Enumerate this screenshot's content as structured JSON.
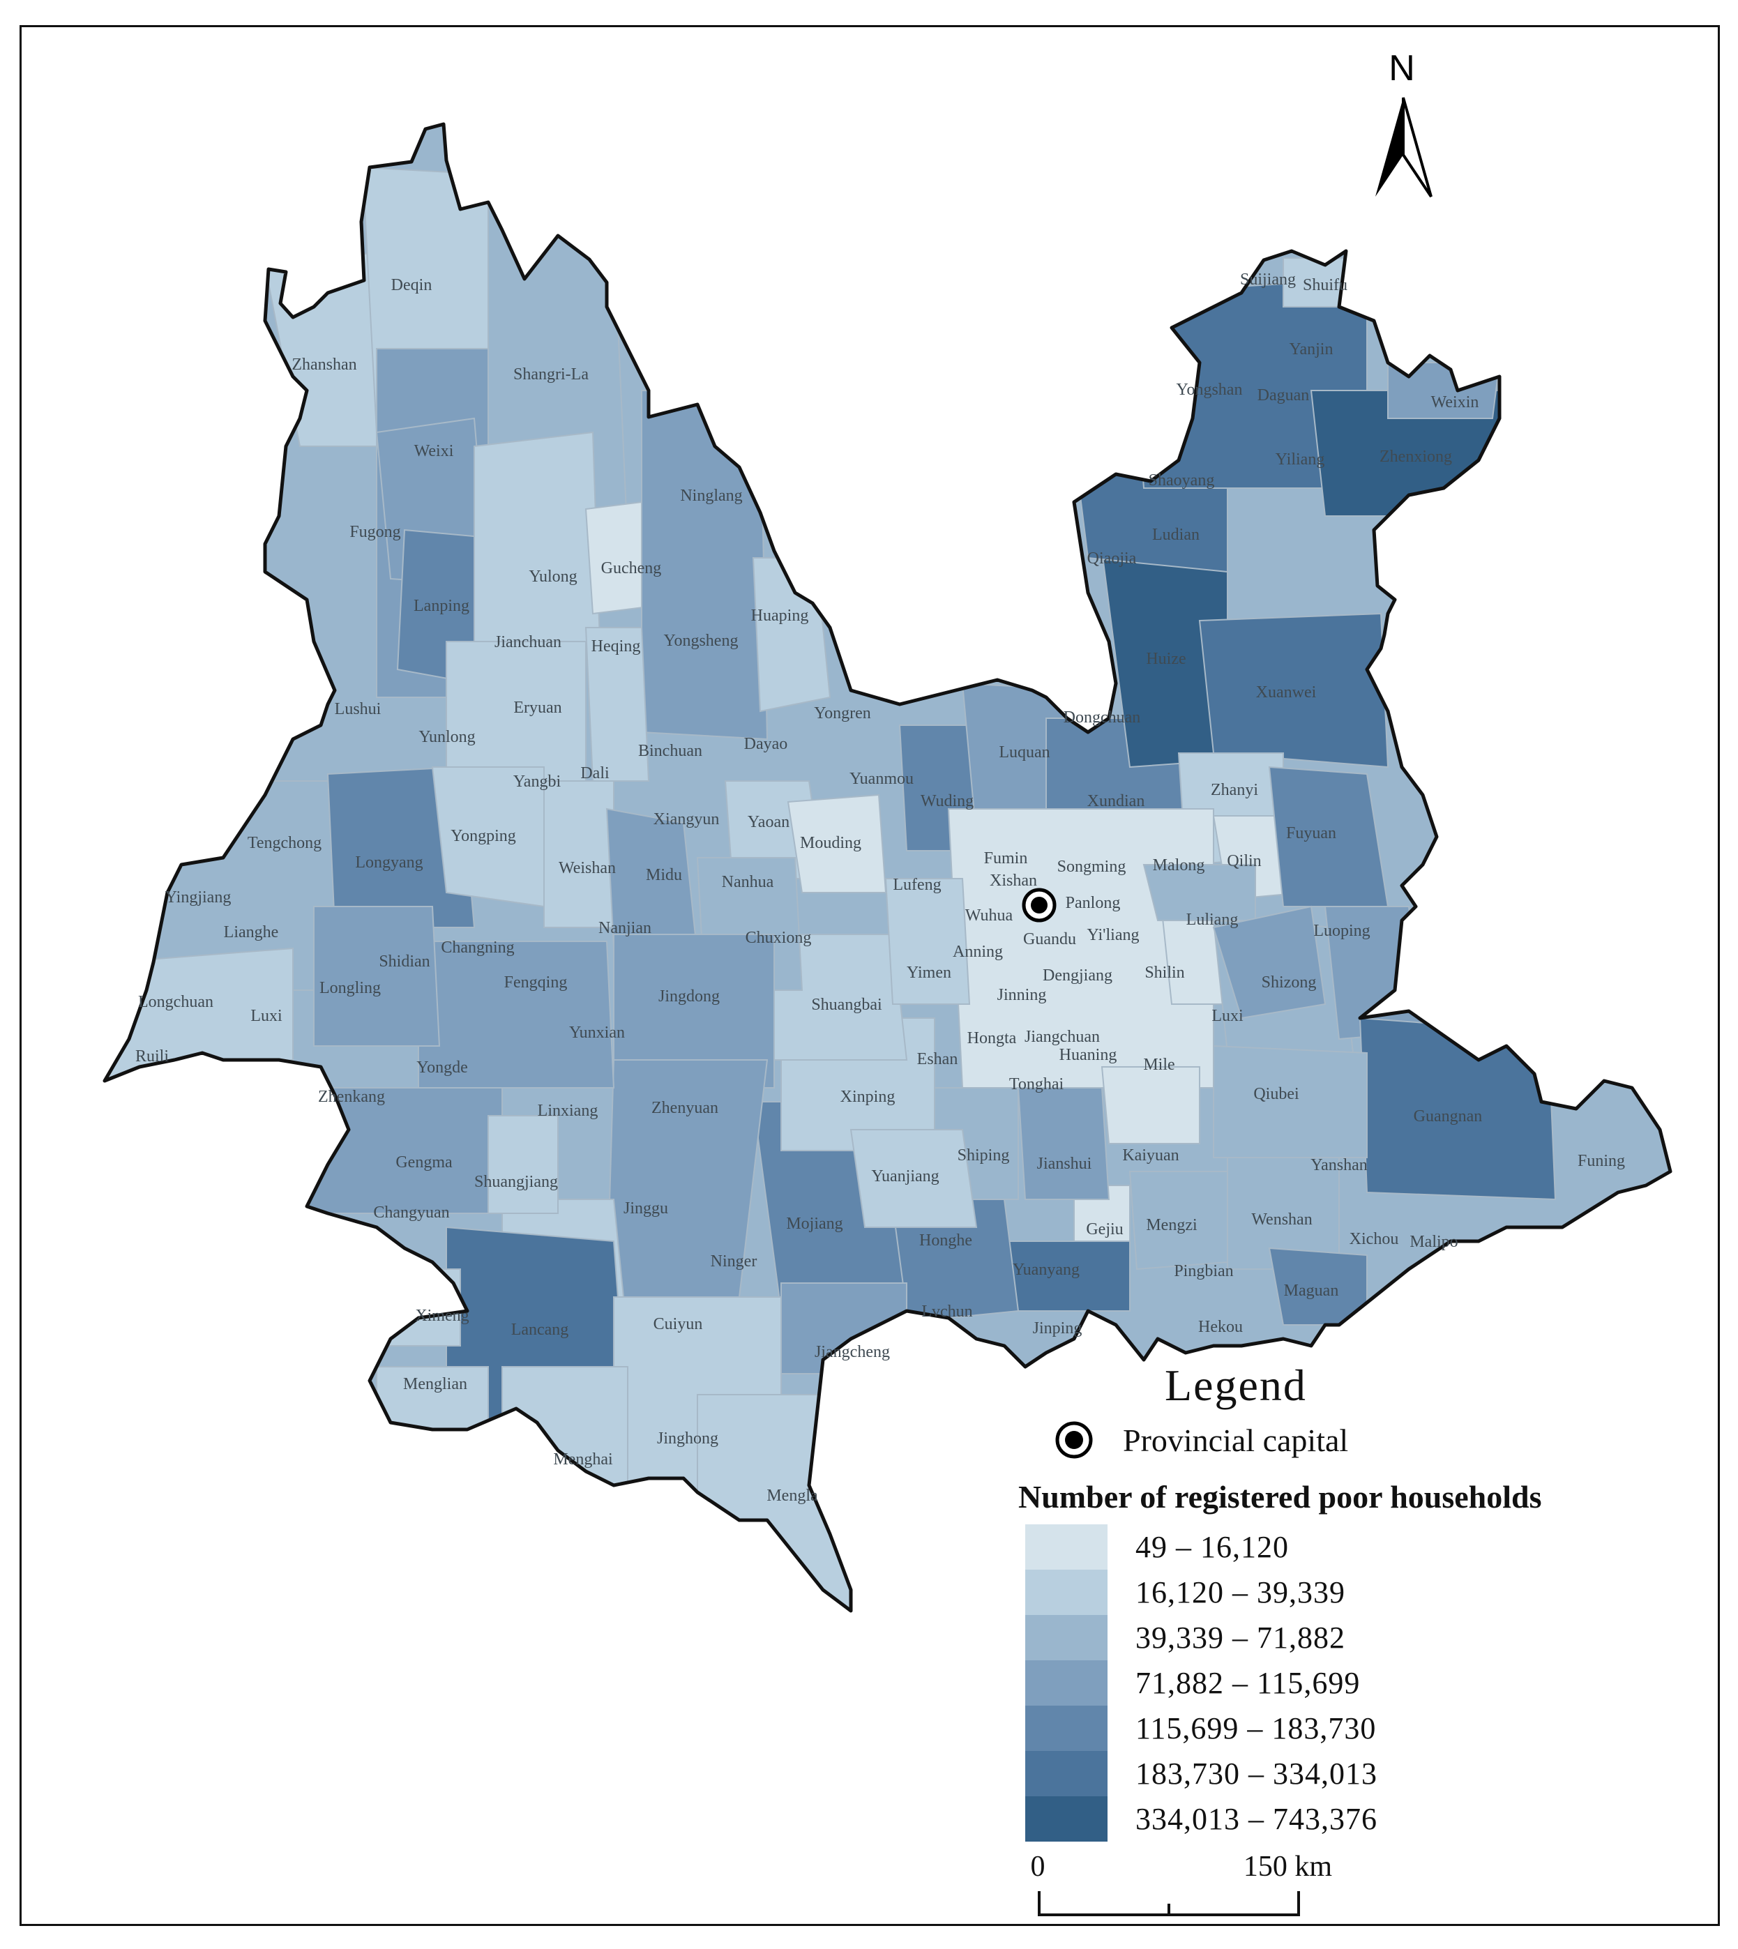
{
  "map": {
    "north_label": "N",
    "labels": {
      "deqin": "Deqin",
      "zhanshan": "Zhanshan",
      "shangrila": "Shangri-La",
      "weixi": "Weixi",
      "fugong": "Fugong",
      "lanping": "Lanping",
      "yulong": "Yulong",
      "gucheng": "Gucheng",
      "ninglang": "Ninglang",
      "huaping": "Huaping",
      "jianchuan": "Jianchuan",
      "heqing": "Heqing",
      "yongsheng": "Yongsheng",
      "lushui": "Lushui",
      "eryuan": "Eryuan",
      "yunlong": "Yunlong",
      "binchuan": "Binchuan",
      "dayao": "Dayao",
      "yongren": "Yongren",
      "yangbi": "Yangbi",
      "dali": "Dali",
      "yuanmou": "Yuanmou",
      "tengchong": "Tengchong",
      "yongping": "Yongping",
      "longyang": "Longyang",
      "xiangyun": "Xiangyun",
      "yaoan": "Yaoan",
      "mouding": "Mouding",
      "wuding": "Wuding",
      "luquan": "Luquan",
      "dongchuan": "Dongchuan",
      "xundian": "Xundian",
      "yingjiang": "Yingjiang",
      "weishan": "Weishan",
      "midu": "Midu",
      "nanhua": "Nanhua",
      "lufeng": "Lufeng",
      "fumin": "Fumin",
      "songming": "Songming",
      "malong": "Malong",
      "lianghe": "Lianghe",
      "nanjian": "Nanjian",
      "chuxiong": "Chuxiong",
      "xishan": "Xishan",
      "panlong": "Panlong",
      "wuhua": "Wuhua",
      "guandu": "Guandu",
      "yiliang": "Yi'liang",
      "anning": "Anning",
      "changning": "Changning",
      "shidian": "Shidian",
      "longling": "Longling",
      "fengqing": "Fengqing",
      "yimen": "Yimen",
      "dengjiang": "Dengjiang",
      "shilin": "Shilin",
      "longchuan": "Longchuan",
      "luxi_w": "Luxi",
      "jingdong": "Jingdong",
      "shuangbai": "Shuangbai",
      "jinning": "Jinning",
      "ruili": "Ruili",
      "yunxian": "Yunxian",
      "hongta": "Hongta",
      "jiangchuan": "Jiangchuan",
      "eshan": "Eshan",
      "huaning": "Huaning",
      "yongde": "Yongde",
      "zhenkang": "Zhenkang",
      "tonghai": "Tonghai",
      "xinping": "Xinping",
      "zhenyuan": "Zhenyuan",
      "linxiang": "Linxiang",
      "shiping": "Shiping",
      "jianshui": "Jianshui",
      "gengma": "Gengma",
      "shuangjiang": "Shuangjiang",
      "yuanjiang": "Yuanjiang",
      "changyuan": "Changyuan",
      "jinggu": "Jinggu",
      "mojiang": "Mojiang",
      "honghe": "Honghe",
      "ninger": "Ninger",
      "ximeng": "Ximeng",
      "lancang": "Lancang",
      "cuiyun": "Cuiyun",
      "yuanyang": "Yuanyang",
      "lvchun": "Lvchun",
      "jinping": "Jinping",
      "jiangcheng": "Jiangcheng",
      "menglian": "Menglian",
      "jinghong": "Jinghong",
      "menghai": "Menghai",
      "mengla": "Mengla",
      "shuijiang": "Suijiang",
      "shuifu": "Shuifu",
      "yanjin": "Yanjin",
      "yongshan": "Yongshan",
      "daguan": "Daguan",
      "weixin": "Weixin",
      "zhenxiong": "Zhenxiong",
      "shaoyang": "Shaoyang",
      "yiliang_n": "Yiliang",
      "ludian": "Ludian",
      "qiaojia": "Qiaojia",
      "huize": "Huize",
      "xuanwei": "Xuanwei",
      "zhanyi": "Zhanyi",
      "qilin": "Qilin",
      "fuyuan": "Fuyuan",
      "luliang": "Luliang",
      "luoping": "Luoping",
      "shizong": "Shizong",
      "luxi_e": "Luxi",
      "mile": "Mile",
      "qiubei": "Qiubei",
      "guangnan": "Guangnan",
      "funing": "Funing",
      "kaiyuan": "Kaiyuan",
      "yanshan": "Yanshan",
      "gejiu": "Gejiu",
      "mengzi": "Mengzi",
      "wenshan": "Wenshan",
      "xichou": "Xichou",
      "malipo": "Malipo",
      "pingbian": "Pingbian",
      "maguan": "Maguan",
      "hekou": "Hekou"
    }
  },
  "legend": {
    "title": "Legend",
    "capital_label": "Provincial capital",
    "classes_title": "Number of registered poor households",
    "classes": [
      {
        "label": "49 – 16,120",
        "color": "#d5e3eb"
      },
      {
        "label": "16,120 – 39,339",
        "color": "#b8cfdf"
      },
      {
        "label": "39,339 – 71,882",
        "color": "#9ab6cd"
      },
      {
        "label": "71,882 – 115,699",
        "color": "#7f9fbe"
      },
      {
        "label": "115,699 – 183,730",
        "color": "#6186ab"
      },
      {
        "label": "183,730 – 334,013",
        "color": "#4b749c"
      },
      {
        "label": "334,013 – 743,376",
        "color": "#325f86"
      }
    ]
  },
  "scale": {
    "start": "0",
    "end": "150 km"
  }
}
